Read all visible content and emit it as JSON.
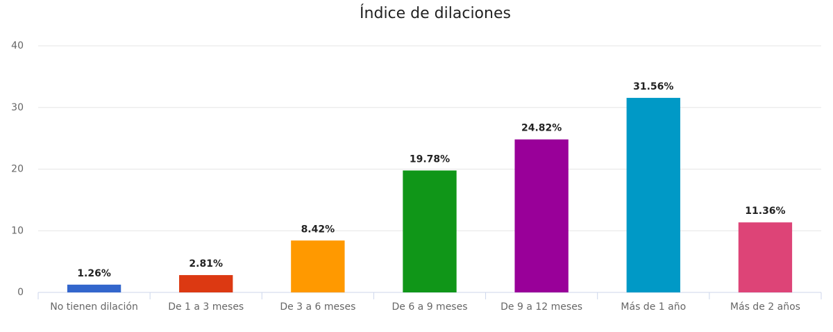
{
  "chart_data": {
    "type": "bar",
    "title": "Índice de dilaciones",
    "categories": [
      "No tienen dilación",
      "De 1 a 3 meses",
      "De 3 a 6 meses",
      "De 6 a 9 meses",
      "De 9 a 12 meses",
      "Más de 1 año",
      "Más de 2 años"
    ],
    "values": [
      1.26,
      2.81,
      8.42,
      19.78,
      24.82,
      31.56,
      11.36
    ],
    "value_labels": [
      "1.26%",
      "2.81%",
      "8.42%",
      "19.78%",
      "24.82%",
      "31.56%",
      "11.36%"
    ],
    "colors": [
      "#3366cc",
      "#dc3912",
      "#ff9900",
      "#109618",
      "#990099",
      "#0099c6",
      "#dd4477"
    ],
    "ylim": [
      0,
      40
    ],
    "yticks": [
      0,
      10,
      20,
      30,
      40
    ],
    "grid": true
  }
}
